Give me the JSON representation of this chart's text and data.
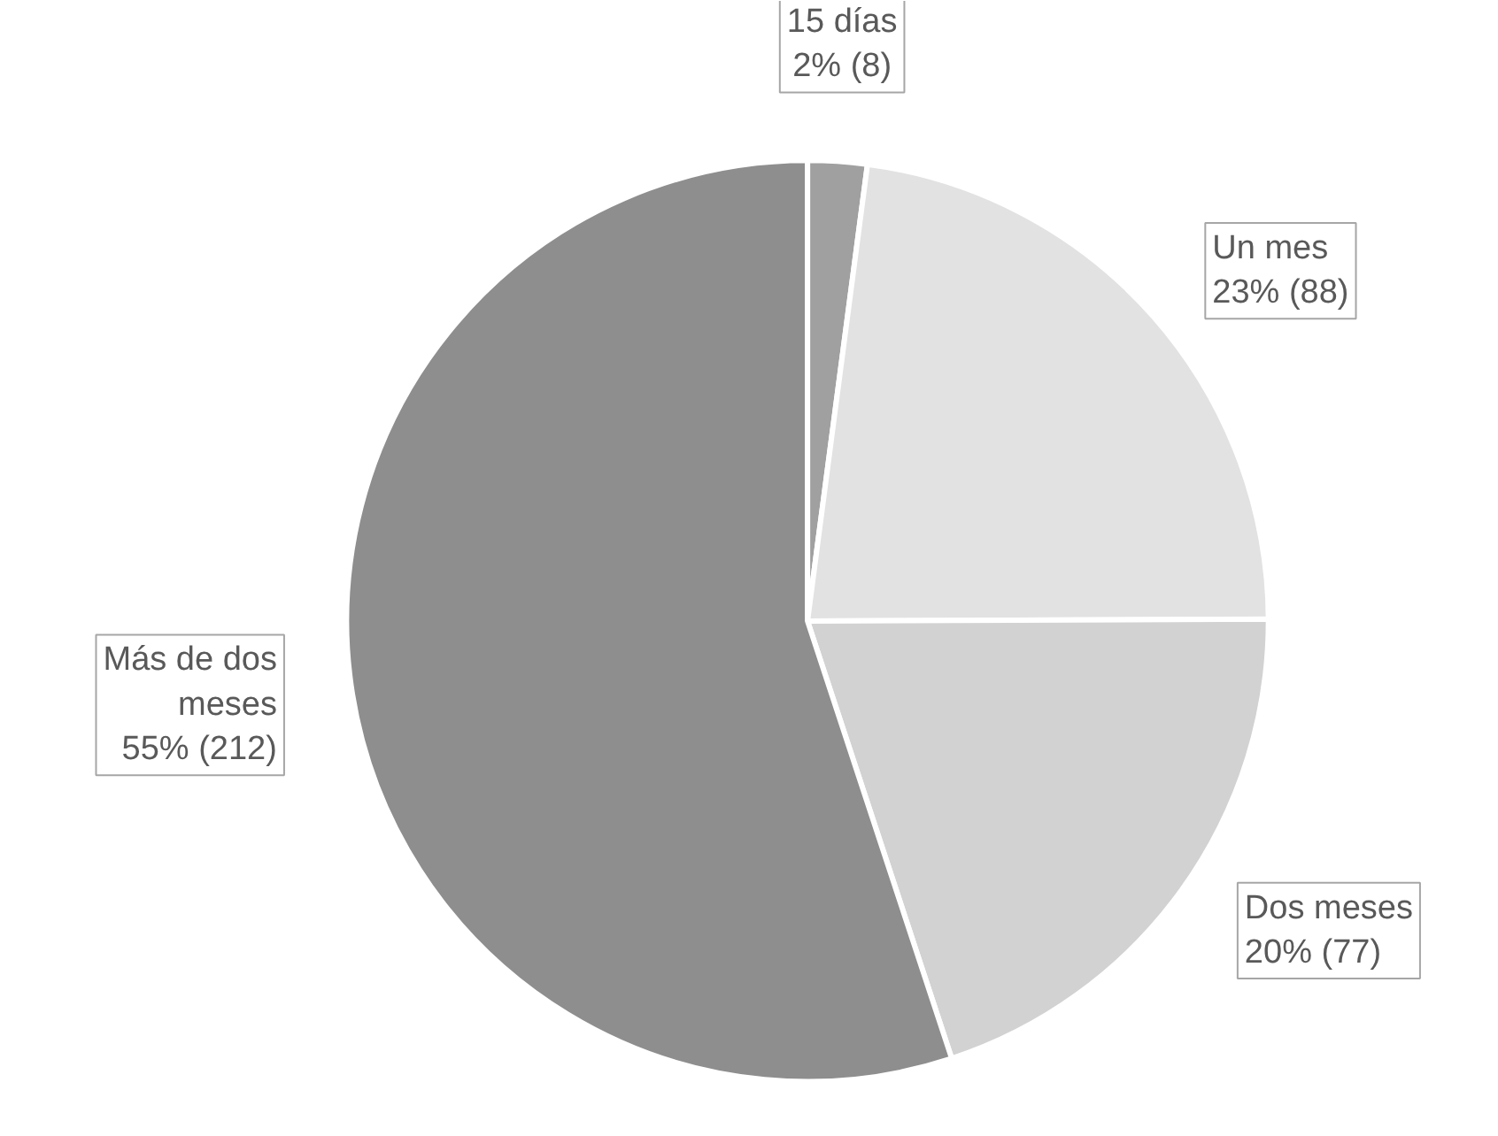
{
  "chart_data": {
    "type": "pie",
    "categories": [
      "15 días",
      "Un mes",
      "Dos meses",
      "Más de dos meses"
    ],
    "values": [
      8,
      88,
      77,
      212
    ],
    "value_labels": [
      "2% (8)",
      "23% (88)",
      "20% (77)",
      "55% (212)"
    ],
    "colors": [
      "#a0a0a0",
      "#e2e2e2",
      "#d2d2d2",
      "#8e8e8e"
    ]
  }
}
